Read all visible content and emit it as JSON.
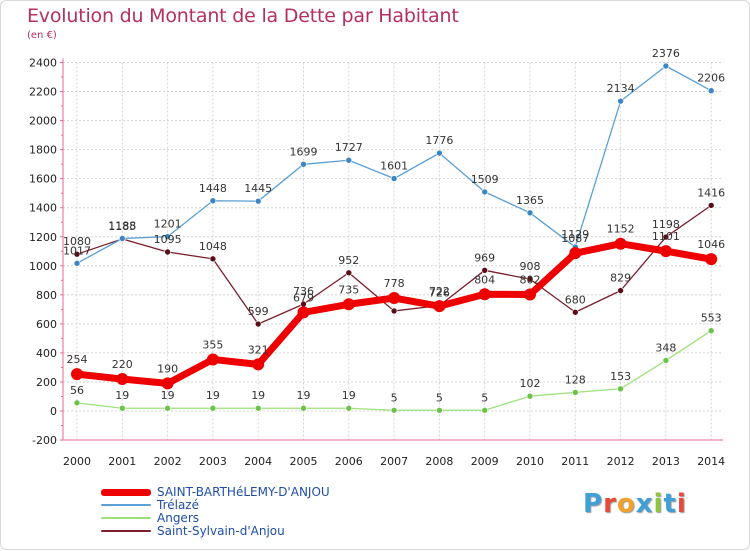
{
  "title": "Evolution du Montant de la Dette par Habitant",
  "unit_label": "(en €)",
  "logo": {
    "text": "Proxiti",
    "letter_colors": [
      "#3fa0d8",
      "#e8493a",
      "#f2a22a",
      "#3fa0d8",
      "#8cc63f",
      "#3fa0d8",
      "#e8493a"
    ]
  },
  "chart_data": {
    "type": "line",
    "title": "Evolution du Montant de la Dette par Habitant",
    "ylabel": "(en €)",
    "xlabel": "",
    "x": [
      "2000",
      "2001",
      "2002",
      "2003",
      "2004",
      "2005",
      "2006",
      "2007",
      "2008",
      "2009",
      "2010",
      "2011",
      "2012",
      "2013",
      "2014"
    ],
    "ylim": [
      -200,
      2400
    ],
    "yticks": [
      "-200",
      "0",
      "200",
      "400",
      "600",
      "800",
      "1000",
      "1200",
      "1400",
      "1600",
      "1800",
      "2000",
      "2200",
      "2400"
    ],
    "grid": true,
    "legend_position": "bottom-left",
    "series": [
      {
        "name": "Saint-Sylvain-d'Anjou",
        "color": "#7a1f2b",
        "marker_color": "#5a0e18",
        "values": [
          1080,
          1185,
          1095,
          1048,
          599,
          736,
          952,
          689,
          726,
          969,
          908,
          680,
          829,
          1198,
          1416
        ],
        "labels": [
          "1080",
          "1185",
          "1095",
          "1048",
          "599",
          "736",
          "952",
          "",
          "726",
          "969",
          "908",
          "680",
          "829",
          "1198",
          "1416"
        ]
      },
      {
        "name": "Angers",
        "color": "#9ee07a",
        "marker_color": "#6cc24a",
        "values": [
          56,
          19,
          19,
          19,
          19,
          19,
          19,
          5,
          5,
          5,
          102,
          128,
          153,
          348,
          553
        ],
        "labels": [
          "56",
          "19",
          "19",
          "19",
          "19",
          "19",
          "19",
          "5",
          "5",
          "5",
          "102",
          "128",
          "153",
          "348",
          "553"
        ]
      },
      {
        "name": "Trélazé",
        "color": "#5a9fd6",
        "marker_color": "#3c86c6",
        "values": [
          1017,
          1188,
          1201,
          1448,
          1445,
          1699,
          1727,
          1601,
          1776,
          1509,
          1365,
          1129,
          2134,
          2376,
          2206
        ],
        "labels": [
          "1017",
          "1188",
          "1201",
          "1448",
          "1445",
          "1699",
          "1727",
          "1601",
          "1776",
          "1509",
          "1365",
          "1129",
          "2134",
          "2376",
          "2206"
        ]
      },
      {
        "name": "SAINT-BARTHéLEMY-D'ANJOU",
        "color": "#ee0000",
        "marker_color": "#ee0000",
        "values": [
          254,
          220,
          190,
          355,
          321,
          679,
          735,
          778,
          722,
          804,
          802,
          1087,
          1152,
          1101,
          1046
        ],
        "labels": [
          "254",
          "220",
          "190",
          "355",
          "321",
          "679",
          "735",
          "778",
          "722",
          "804",
          "802",
          "1087",
          "1152",
          "1101",
          "1046"
        ]
      }
    ]
  },
  "legend": [
    {
      "label": "SAINT-BARTHéLEMY-D'ANJOU",
      "color": "#ee0000"
    },
    {
      "label": "Trélazé",
      "color": "#5a9fd6"
    },
    {
      "label": "Angers",
      "color": "#9ee07a"
    },
    {
      "label": "Saint-Sylvain-d'Anjou",
      "color": "#7a1f2b"
    }
  ]
}
